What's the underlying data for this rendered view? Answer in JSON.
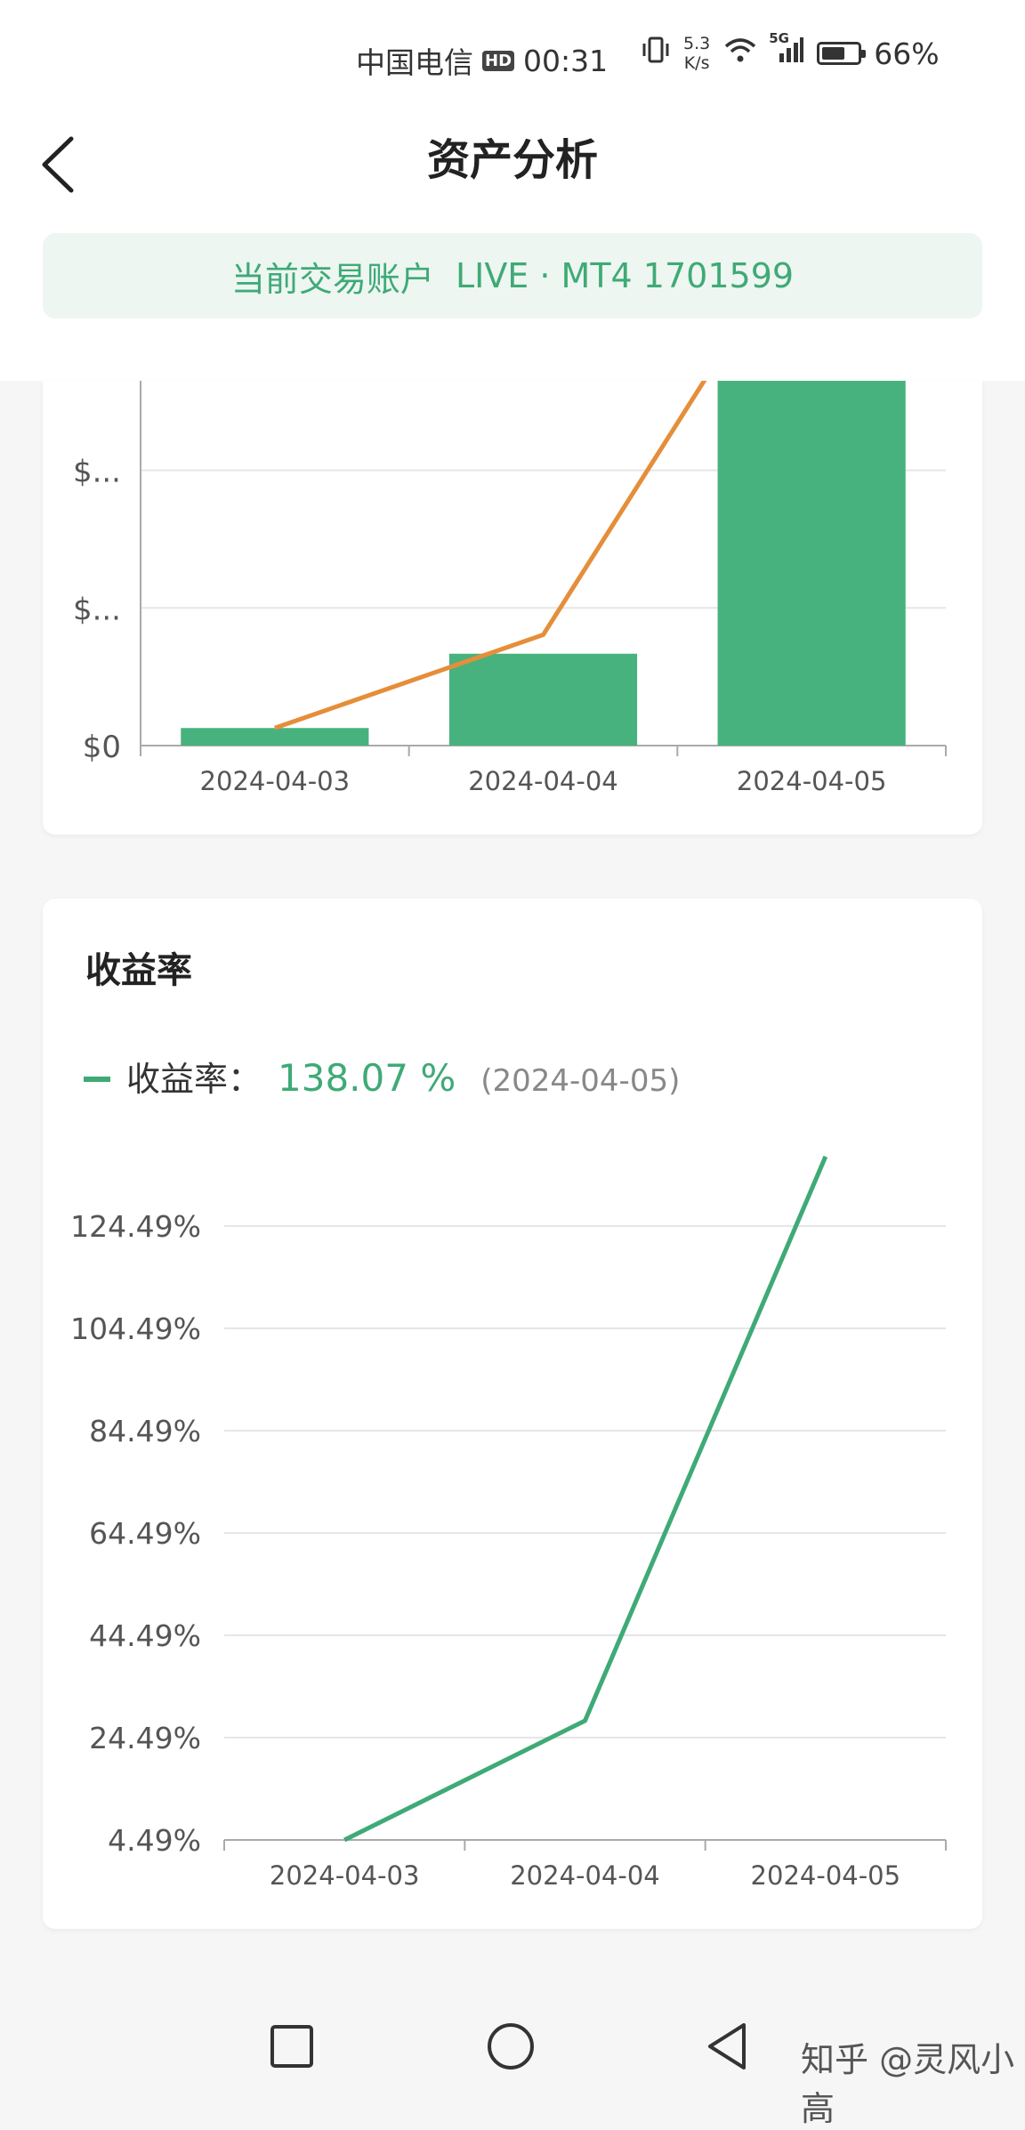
{
  "status_bar": {
    "carrier": "中国电信",
    "hd_badge": "HD",
    "time": "00:31",
    "net_speed_value": "5.3",
    "net_speed_unit": "K/s",
    "network_badge": "5G",
    "battery_percent": "66%",
    "battery_level": 0.66,
    "icons": [
      "vibrate-icon",
      "wifi-icon",
      "signal-icon",
      "battery-icon"
    ]
  },
  "header": {
    "title": "资产分析",
    "back_icon": "chevron-left-icon"
  },
  "account": {
    "label": "当前交易账户",
    "value": "LIVE · MT4 1701599"
  },
  "asset_chart": {
    "chart_data": {
      "type": "bar",
      "categories": [
        "2024-04-03",
        "2024-04-04",
        "2024-04-05"
      ],
      "y_ticks": [
        "$0",
        "$...",
        "$..."
      ],
      "series": [
        {
          "type": "bar",
          "values": [
            0.13,
            0.68,
            2.7
          ],
          "color": "#47b27d"
        },
        {
          "type": "line",
          "values": [
            0.13,
            0.82,
            2.7
          ],
          "color": "#e58e3a"
        }
      ],
      "ylim": [
        0,
        2.7
      ],
      "grid": true
    }
  },
  "return_card": {
    "title": "收益率",
    "legend_label": "收益率：",
    "legend_value": "138.07 %",
    "legend_date": "(2024-04-05)",
    "chart_data": {
      "type": "line",
      "categories": [
        "2024-04-03",
        "2024-04-04",
        "2024-04-05"
      ],
      "y_ticks": [
        "4.49%",
        "24.49%",
        "44.49%",
        "64.49%",
        "84.49%",
        "104.49%",
        "124.49%"
      ],
      "series": [
        {
          "values": [
            4.49,
            27.8,
            138.07
          ],
          "color": "#3faa77"
        }
      ],
      "ylim": [
        4.49,
        138.07
      ],
      "grid": true
    }
  },
  "nav_bar": {
    "buttons": [
      "recent-apps-button",
      "home-button",
      "back-button"
    ]
  },
  "watermark": "知乎 @灵风小高"
}
